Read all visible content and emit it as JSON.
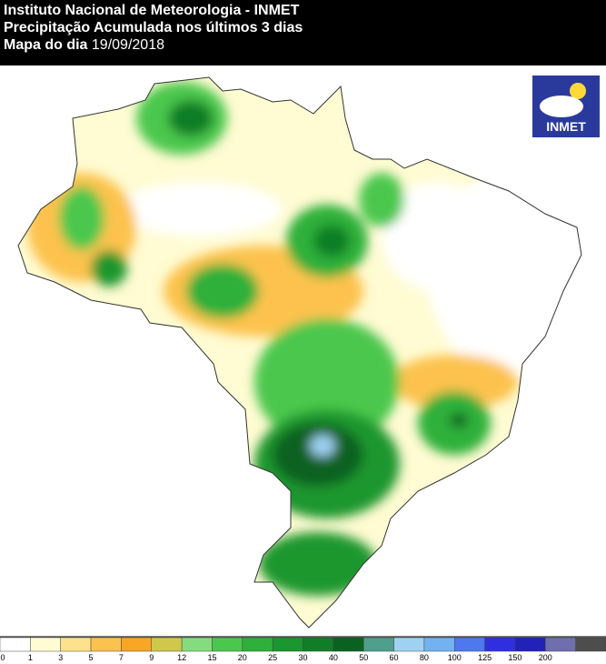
{
  "header": {
    "title": "Instituto Nacional de Meteorologia - INMET",
    "subtitle": "Precipitação Acumulada nos últimos 3 dias",
    "date_label": "Mapa do dia",
    "date": "19/09/2018"
  },
  "logo": {
    "text": "INMET"
  },
  "legend": {
    "labels": [
      0,
      1,
      3,
      5,
      7,
      9,
      12,
      15,
      20,
      25,
      30,
      40,
      50,
      60,
      80,
      100,
      125,
      150,
      200
    ],
    "colors": [
      "#ffffff",
      "#fffbd2",
      "#fde18c",
      "#fcc24e",
      "#f9a525",
      "#cfc84a",
      "#84dc7e",
      "#4cc74e",
      "#2fb03a",
      "#1b972f",
      "#117e27",
      "#0a6222",
      "#4e9f8c",
      "#9fd2f2",
      "#72b2f1",
      "#4e78ee",
      "#2f2fe0",
      "#2222b8",
      "#6f6fae",
      "#4d4d4d"
    ]
  }
}
